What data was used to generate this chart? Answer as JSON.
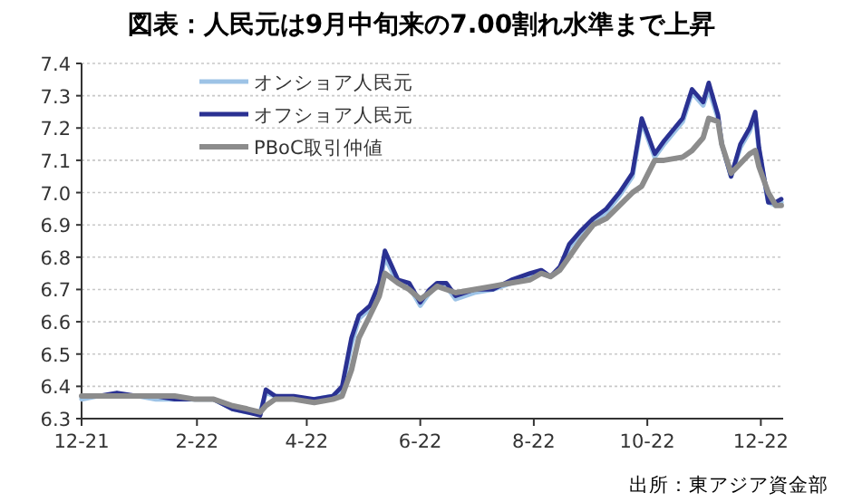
{
  "chart_data": {
    "type": "line",
    "title": "図表：人民元は9月中旬来の7.00割れ水準まで上昇",
    "annotations": [
      "出所：東アジア資金部"
    ],
    "legend": "top left",
    "grid": "y",
    "line_style": "solid",
    "marker": "none",
    "xlim": [
      "2021-12-01",
      "2022-12-13"
    ],
    "xticks": [
      {
        "value": "2021-12-01",
        "label": "12-21"
      },
      {
        "value": "2022-02-01",
        "label": "2-22"
      },
      {
        "value": "2022-04-01",
        "label": "4-22"
      },
      {
        "value": "2022-06-01",
        "label": "6-22"
      },
      {
        "value": "2022-08-01",
        "label": "8-22"
      },
      {
        "value": "2022-10-01",
        "label": "10-22"
      },
      {
        "value": "2022-12-01",
        "label": "12-22"
      }
    ],
    "ylim": [
      6.3,
      7.4
    ],
    "yticks": [
      6.3,
      6.4,
      6.5,
      6.6,
      6.7,
      6.8,
      6.9,
      {
        "value": 7.0,
        "label": "7.0"
      },
      7.1,
      7.2,
      7.3,
      7.4
    ],
    "x": [
      "2021-12-01",
      "2021-12-10",
      "2021-12-20",
      "2021-12-31",
      "2022-01-10",
      "2022-01-20",
      "2022-01-31",
      "2022-02-10",
      "2022-02-20",
      "2022-02-28",
      "2022-03-07",
      "2022-03-10",
      "2022-03-15",
      "2022-03-25",
      "2022-04-05",
      "2022-04-15",
      "2022-04-20",
      "2022-04-25",
      "2022-04-29",
      "2022-05-05",
      "2022-05-10",
      "2022-05-13",
      "2022-05-20",
      "2022-05-26",
      "2022-06-01",
      "2022-06-06",
      "2022-06-10",
      "2022-06-15",
      "2022-06-20",
      "2022-06-30",
      "2022-07-10",
      "2022-07-20",
      "2022-07-30",
      "2022-08-05",
      "2022-08-10",
      "2022-08-15",
      "2022-08-20",
      "2022-08-26",
      "2022-09-02",
      "2022-09-09",
      "2022-09-16",
      "2022-09-23",
      "2022-09-28",
      "2022-10-05",
      "2022-10-10",
      "2022-10-20",
      "2022-10-25",
      "2022-10-31",
      "2022-11-03",
      "2022-11-08",
      "2022-11-10",
      "2022-11-15",
      "2022-11-20",
      "2022-11-25",
      "2022-11-28",
      "2022-11-30",
      "2022-12-05",
      "2022-12-09",
      "2022-12-12"
    ],
    "series": [
      {
        "name": "オンショア人民元",
        "color": "#9dc3e6",
        "values": [
          6.36,
          6.37,
          6.37,
          6.37,
          6.36,
          6.36,
          6.36,
          6.36,
          6.33,
          6.32,
          6.32,
          6.38,
          6.37,
          6.36,
          6.36,
          6.37,
          6.39,
          6.53,
          6.61,
          6.64,
          6.71,
          6.8,
          6.72,
          6.71,
          6.65,
          6.69,
          6.71,
          6.71,
          6.67,
          6.69,
          6.7,
          6.72,
          6.74,
          6.75,
          6.74,
          6.76,
          6.83,
          6.87,
          6.91,
          6.94,
          6.99,
          7.05,
          7.22,
          7.11,
          7.15,
          7.22,
          7.31,
          7.27,
          7.32,
          7.23,
          7.15,
          7.05,
          7.14,
          7.19,
          7.24,
          7.13,
          6.97,
          6.96,
          6.97
        ]
      },
      {
        "name": "オフショア人民元",
        "color": "#2a3192",
        "values": [
          6.37,
          6.37,
          6.38,
          6.37,
          6.37,
          6.36,
          6.36,
          6.36,
          6.33,
          6.32,
          6.31,
          6.39,
          6.37,
          6.37,
          6.36,
          6.37,
          6.4,
          6.55,
          6.62,
          6.65,
          6.72,
          6.82,
          6.73,
          6.72,
          6.66,
          6.7,
          6.72,
          6.72,
          6.68,
          6.7,
          6.7,
          6.73,
          6.75,
          6.76,
          6.74,
          6.77,
          6.84,
          6.88,
          6.92,
          6.95,
          7.0,
          7.06,
          7.23,
          7.12,
          7.16,
          7.23,
          7.32,
          7.28,
          7.34,
          7.24,
          7.15,
          7.05,
          7.15,
          7.2,
          7.25,
          7.14,
          6.97,
          6.97,
          6.98
        ]
      },
      {
        "name": "PBoC取引仲値",
        "color": "#8c8c8c",
        "values": [
          6.37,
          6.37,
          6.37,
          6.37,
          6.37,
          6.37,
          6.36,
          6.36,
          6.34,
          6.33,
          6.32,
          6.34,
          6.36,
          6.36,
          6.35,
          6.36,
          6.37,
          6.45,
          6.55,
          6.62,
          6.68,
          6.75,
          6.72,
          6.7,
          6.67,
          6.69,
          6.71,
          6.7,
          6.69,
          6.7,
          6.71,
          6.72,
          6.73,
          6.75,
          6.74,
          6.76,
          6.8,
          6.85,
          6.9,
          6.92,
          6.96,
          7.0,
          7.02,
          7.1,
          7.1,
          7.11,
          7.13,
          7.17,
          7.23,
          7.22,
          7.15,
          7.06,
          7.09,
          7.12,
          7.13,
          7.08,
          7.0,
          6.96,
          6.96
        ]
      }
    ]
  }
}
